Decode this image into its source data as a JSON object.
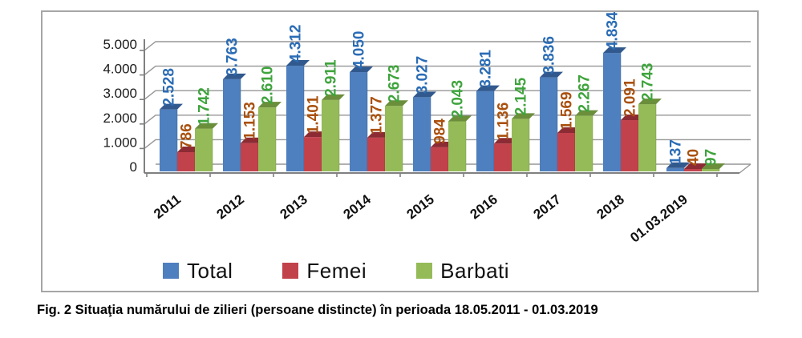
{
  "figure": {
    "caption": "Fig. 2 Situaţia numărului de zilieri (persoane distincte) în perioada 18.05.2011 - 01.03.2019"
  },
  "chart_data": {
    "type": "bar",
    "style": "3d-clustered-column",
    "categories": [
      "2011",
      "2012",
      "2013",
      "2014",
      "2015",
      "2016",
      "2017",
      "2018",
      "01.03.2019"
    ],
    "series": [
      {
        "name": "Total",
        "color": "#4e7fbe",
        "dark_color": "#31598e",
        "label_color": "#2a6cb5",
        "values": [
          2528,
          3763,
          4312,
          4050,
          3027,
          3281,
          3836,
          4834,
          137
        ],
        "labels": [
          "2.528",
          "3.763",
          "4.312",
          "4.050",
          "3.027",
          "3.281",
          "3.836",
          "4.834",
          "137"
        ]
      },
      {
        "name": "Femei",
        "color": "#c2424c",
        "dark_color": "#8c2b33",
        "label_color": "#a9500e",
        "values": [
          786,
          1153,
          1401,
          1377,
          984,
          1136,
          1569,
          2091,
          40
        ],
        "labels": [
          "786",
          "1.153",
          "1.401",
          "1.377",
          "984",
          "1.136",
          "1.569",
          "2.091",
          "40"
        ]
      },
      {
        "name": "Barbati",
        "color": "#95bb58",
        "dark_color": "#6b8e3b",
        "label_color": "#3ea43c",
        "values": [
          1742,
          2610,
          2911,
          2673,
          2043,
          2145,
          2267,
          2743,
          97
        ],
        "labels": [
          "1.742",
          "2.610",
          "2.911",
          "2.673",
          "2.043",
          "2.145",
          "2.267",
          "2.743",
          "97"
        ]
      }
    ],
    "ylim": [
      0,
      5000
    ],
    "yticks": [
      0,
      1000,
      2000,
      3000,
      4000,
      5000
    ],
    "ytick_labels": [
      "0",
      "1.000",
      "2.000",
      "3.000",
      "4.000",
      "5.000"
    ],
    "xlabel": "",
    "ylabel": "",
    "grid": true,
    "legend": {
      "position": "bottom",
      "items": [
        "Total",
        "Femei",
        "Barbati"
      ]
    },
    "colors": {
      "gridline": "#969696",
      "axis": "#808080",
      "tick_text": "#1a1a1a",
      "category_text": "#111111",
      "border": "#a6a6a6"
    }
  }
}
